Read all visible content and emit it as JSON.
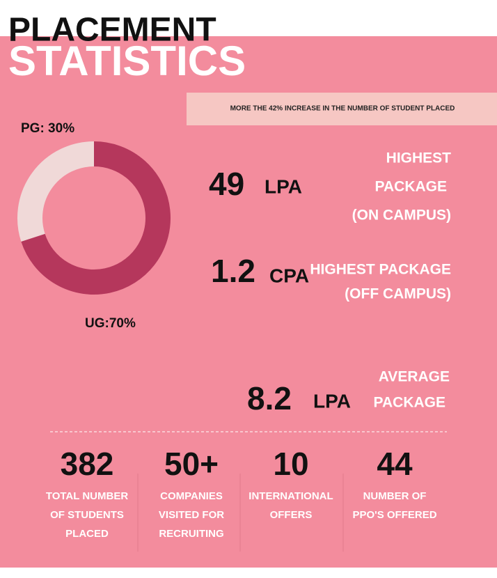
{
  "header": {
    "title_line1": "PLACEMENT",
    "title_line2": "STATISTICS"
  },
  "banner": "MORE THE 42% INCREASE IN THE  NUMBER OF STUDENT  PLACED",
  "chart_data": {
    "type": "pie",
    "values": [
      30,
      70
    ],
    "value_labels": [
      "PG: 30%",
      "UG:70%"
    ],
    "colors": [
      "#f0d9d8",
      "#b5375c"
    ]
  },
  "packages": [
    {
      "value": 49,
      "unit": "LPA",
      "label": [
        "HIGHEST",
        "PACKAGE",
        "(ON CAMPUS)"
      ]
    },
    {
      "value": 1.2,
      "unit": "CPA",
      "label": [
        "HIGHEST PACKAGE",
        "(OFF CAMPUS)"
      ]
    },
    {
      "value": 8.2,
      "unit": "LPA",
      "label": [
        "AVERAGE",
        "PACKAGE"
      ]
    }
  ],
  "summary": [
    {
      "value": 382,
      "label": [
        "TOTAL NUMBER",
        "OF STUDENTS",
        "PLACED"
      ]
    },
    {
      "value": "50+",
      "label": [
        "COMPANIES",
        "VISITED FOR",
        "RECRUITING"
      ]
    },
    {
      "value": 10,
      "label": [
        "INTERNATIONAL",
        "OFFERS"
      ]
    },
    {
      "value": 44,
      "label": [
        "NUMBER OF",
        "PPO'S OFFERED"
      ]
    }
  ]
}
